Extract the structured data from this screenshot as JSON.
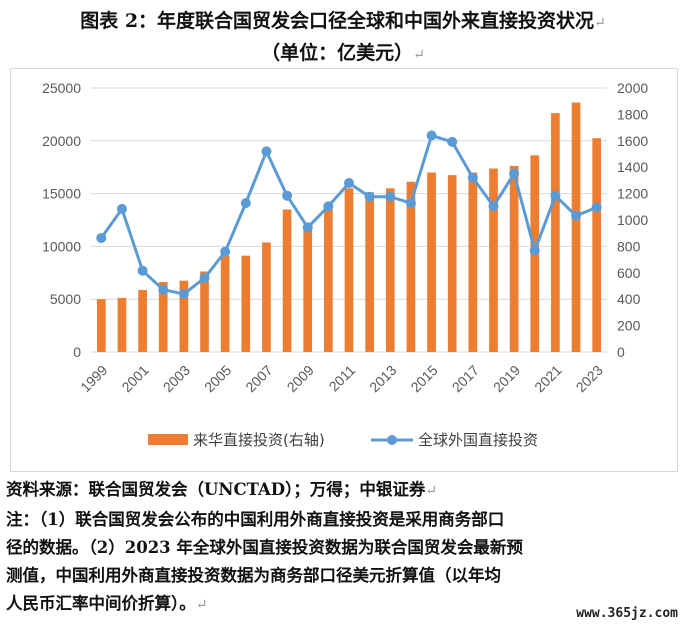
{
  "title_line1": "图表 2：年度联合国贸发会口径全球和中国外来直接投资状况",
  "title_line2": "（单位：亿美元）",
  "edit_mark": "↵",
  "chart_data": {
    "type": "bar+line",
    "categories": [
      "1999",
      "2000",
      "2001",
      "2002",
      "2003",
      "2004",
      "2005",
      "2006",
      "2007",
      "2008",
      "2009",
      "2010",
      "2011",
      "2012",
      "2013",
      "2014",
      "2015",
      "2016",
      "2017",
      "2018",
      "2019",
      "2020",
      "2021",
      "2022",
      "2023"
    ],
    "x_tick_labels": [
      "1999",
      "2001",
      "2003",
      "2005",
      "2007",
      "2009",
      "2011",
      "2013",
      "2015",
      "2017",
      "2019",
      "2021",
      "2023"
    ],
    "left_axis": {
      "ylim": [
        0,
        25000
      ],
      "ticks": [
        "0",
        "5000",
        "10000",
        "15000",
        "20000",
        "25000"
      ]
    },
    "right_axis": {
      "ylim": [
        0,
        2000
      ],
      "ticks": [
        "0",
        "200",
        "400",
        "600",
        "800",
        "1000",
        "1200",
        "1400",
        "1600",
        "1800",
        "2000"
      ]
    },
    "series": [
      {
        "name": "来华直接投资(右轴)",
        "type": "bar",
        "axis": "right",
        "color": "#ed7d31",
        "values": [
          400,
          410,
          470,
          530,
          540,
          610,
          730,
          730,
          830,
          1080,
          940,
          1120,
          1240,
          1210,
          1240,
          1290,
          1360,
          1340,
          1360,
          1390,
          1410,
          1490,
          1810,
          1890,
          1620
        ]
      },
      {
        "name": "全球外国直接投资",
        "type": "line",
        "axis": "left",
        "color": "#5b9bd5",
        "values": [
          10800,
          13550,
          7700,
          5900,
          5500,
          7000,
          9500,
          14100,
          19000,
          14800,
          11800,
          13800,
          16000,
          14700,
          14700,
          14100,
          20500,
          19900,
          16500,
          13800,
          16900,
          9600,
          14800,
          12900,
          13700
        ]
      }
    ],
    "grid": true,
    "legend": "bottom"
  },
  "source_line": "资料来源：联合国贸发会（UNCTAD）；万得；中银证券",
  "note_line1": "注：（1）联合国贸发会公布的中国利用外商直接投资是采用商务部口",
  "note_line2": "径的数据。（2）2023 年全球外国直接投资数据为联合国贸发会最新预",
  "note_line3": "测值，中国利用外商直接投资数据为商务部口径美元折算值（以年均",
  "note_line4": "人民币汇率中间价折算）。",
  "watermark": "www.365jz.com"
}
